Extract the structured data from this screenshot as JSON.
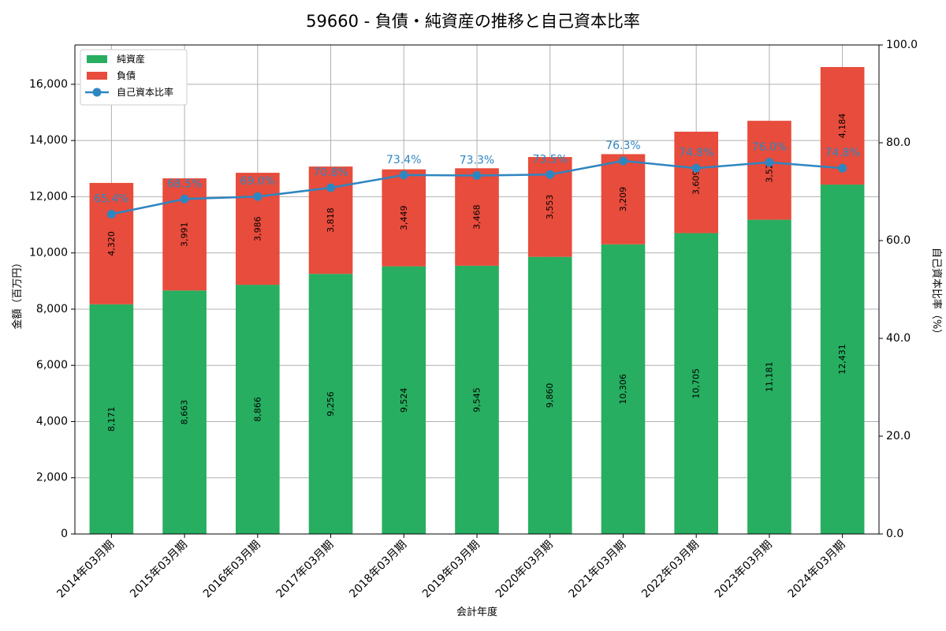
{
  "colors": {
    "net_assets": "#27ae60",
    "liabilities": "#e74c3c",
    "ratio": "#2e86c1",
    "grid": "#b0b0b0",
    "axis": "#000000"
  },
  "chart_data": {
    "type": "bar",
    "stacked": true,
    "title": "59660 - 負債・純資産の推移と自己資本比率",
    "xlabel": "会計年度",
    "ylabel": "金額（百万円）",
    "y2label": "自己資本比率（%）",
    "ylim": [
      0,
      17400
    ],
    "y2lim": [
      0,
      100
    ],
    "grid": true,
    "legend_position": "top-left",
    "yticks": [
      0,
      2000,
      4000,
      6000,
      8000,
      10000,
      12000,
      14000,
      16000
    ],
    "yticks_labels": [
      "0",
      "2,000",
      "4,000",
      "6,000",
      "8,000",
      "10,000",
      "12,000",
      "14,000",
      "16,000"
    ],
    "y2ticks": [
      0,
      20,
      40,
      60,
      80,
      100
    ],
    "y2ticks_labels": [
      "0.0",
      "20.0",
      "40.0",
      "60.0",
      "80.0",
      "100.0"
    ],
    "categories": [
      "2014年03月期",
      "2015年03月期",
      "2016年03月期",
      "2017年03月期",
      "2018年03月期",
      "2019年03月期",
      "2020年03月期",
      "2021年03月期",
      "2022年03月期",
      "2023年03月期",
      "2024年03月期"
    ],
    "series": [
      {
        "name": "純資産",
        "type": "bar",
        "values": [
          8171,
          8663,
          8866,
          9256,
          9524,
          9545,
          9860,
          10306,
          10705,
          11181,
          12431
        ],
        "labels": [
          "8,171",
          "8,663",
          "8,866",
          "9,256",
          "9,524",
          "9,545",
          "9,860",
          "10,306",
          "10,705",
          "11,181",
          "12,431"
        ]
      },
      {
        "name": "負債",
        "type": "bar",
        "values": [
          4320,
          3991,
          3986,
          3818,
          3449,
          3468,
          3553,
          3209,
          3609,
          3521,
          4184
        ],
        "labels": [
          "4,320",
          "3,991",
          "3,986",
          "3,818",
          "3,449",
          "3,468",
          "3,553",
          "3,209",
          "3,609",
          "3,521",
          "4,184"
        ]
      },
      {
        "name": "自己資本比率",
        "type": "line",
        "axis": "right",
        "values": [
          65.4,
          68.5,
          69.0,
          70.8,
          73.4,
          73.3,
          73.5,
          76.3,
          74.8,
          76.0,
          74.8
        ],
        "labels": [
          "65.4%",
          "68.5%",
          "69.0%",
          "70.8%",
          "73.4%",
          "73.3%",
          "73.5%",
          "76.3%",
          "74.8%",
          "76.0%",
          "74.8%"
        ]
      }
    ]
  }
}
